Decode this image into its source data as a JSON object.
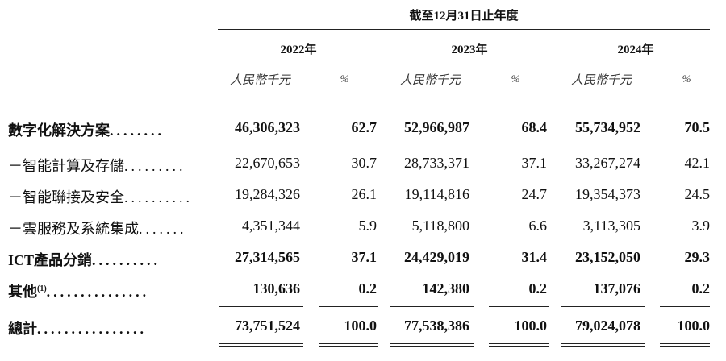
{
  "header": {
    "period_title": "截至12月31日止年度",
    "years": [
      "2022年",
      "2023年",
      "2024年"
    ],
    "unit_label": "人民幣千元",
    "pct_label": "%"
  },
  "rows": [
    {
      "label": "數字化解決方案",
      "dots": "........",
      "bold": true,
      "values": [
        "46,306,323",
        "62.7",
        "52,966,987",
        "68.4",
        "55,734,952",
        "70.5"
      ]
    },
    {
      "label": "－智能計算及存儲",
      "dots": ".........",
      "bold": false,
      "values": [
        "22,670,653",
        "30.7",
        "28,733,371",
        "37.1",
        "33,267,274",
        "42.1"
      ]
    },
    {
      "label": "－智能聯接及安全",
      "dots": "..........",
      "bold": false,
      "values": [
        "19,284,326",
        "26.1",
        "19,114,816",
        "24.7",
        "19,354,373",
        "24.5"
      ]
    },
    {
      "label": "－雲服務及系統集成",
      "dots": ".......",
      "bold": false,
      "values": [
        "4,351,344",
        "5.9",
        "5,118,800",
        "6.6",
        "3,113,305",
        "3.9"
      ]
    },
    {
      "label": "ICT產品分銷",
      "dots": "..........",
      "bold": true,
      "values": [
        "27,314,565",
        "37.1",
        "24,429,019",
        "31.4",
        "23,152,050",
        "29.3"
      ]
    },
    {
      "label": "其他",
      "sup": "(1)",
      "dots": "...............",
      "bold": true,
      "values": [
        "130,636",
        "0.2",
        "142,380",
        "0.2",
        "137,076",
        "0.2"
      ]
    },
    {
      "label": "總計",
      "dots": "................",
      "bold": true,
      "values": [
        "73,751,524",
        "100.0",
        "77,538,386",
        "100.0",
        "79,024,078",
        "100.0"
      ]
    }
  ]
}
